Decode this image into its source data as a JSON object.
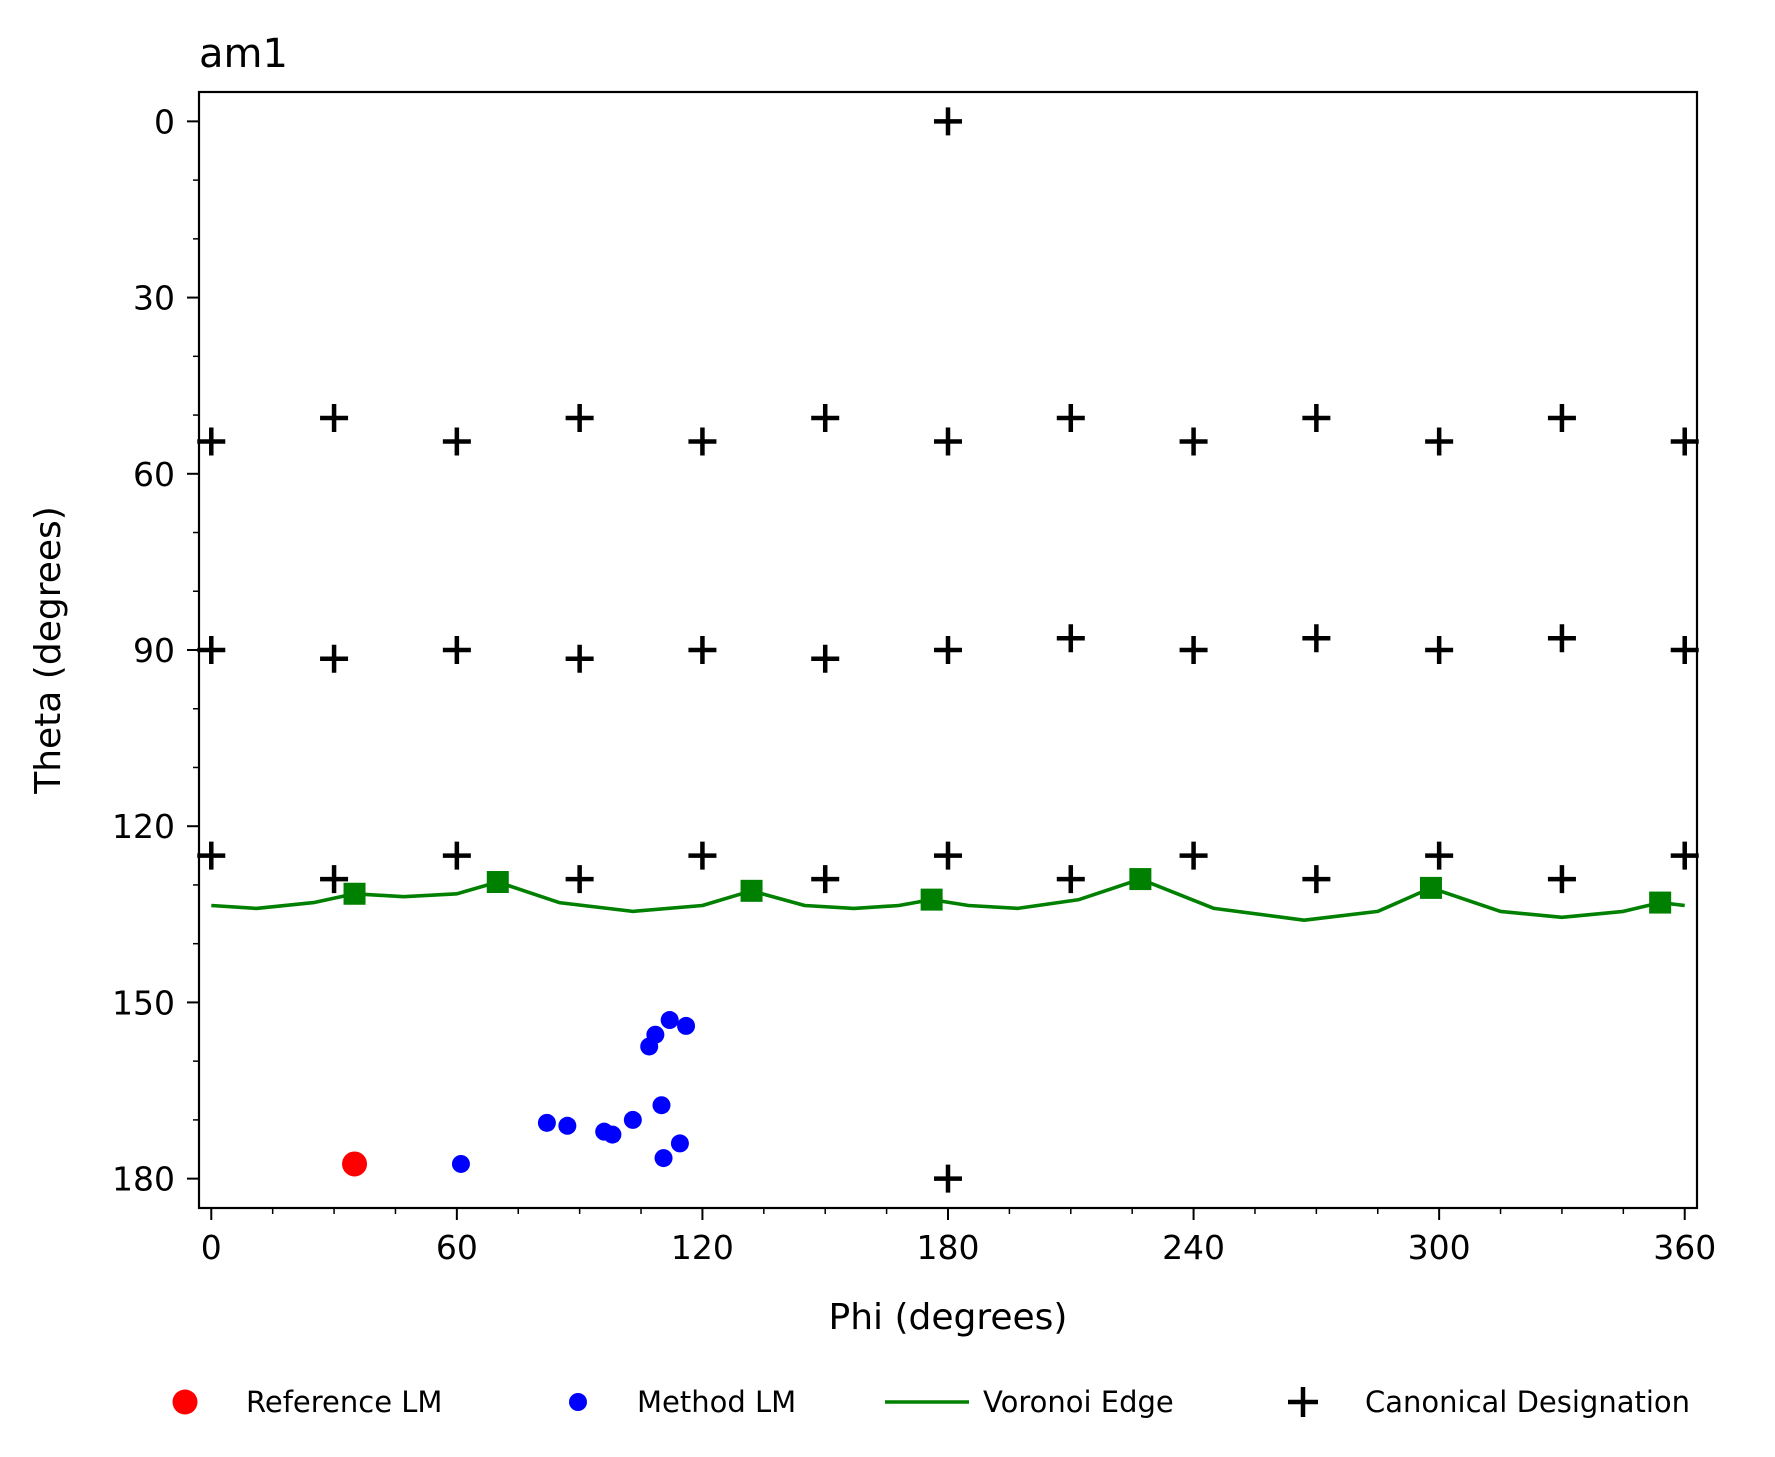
{
  "chart_data": {
    "type": "scatter",
    "title": "am1",
    "xlabel": "Phi (degrees)",
    "ylabel": "Theta (degrees)",
    "xlim": [
      -3,
      363
    ],
    "ylim": [
      185,
      -5
    ],
    "y_inverted": true,
    "xticks": [
      0,
      60,
      120,
      180,
      240,
      300,
      360
    ],
    "yticks": [
      0,
      30,
      60,
      90,
      120,
      150,
      180
    ],
    "grid": false,
    "legend_position": "bottom, outside plot",
    "series": [
      {
        "name": "Reference LM",
        "kind": "scatter",
        "marker": "circle",
        "color": "#ff0000",
        "points": [
          {
            "x": 35,
            "y": 177.5
          }
        ]
      },
      {
        "name": "Method LM",
        "kind": "scatter",
        "marker": "circle",
        "color": "#0000ff",
        "points": [
          {
            "x": 61,
            "y": 177.5
          },
          {
            "x": 82,
            "y": 170.5
          },
          {
            "x": 87,
            "y": 171
          },
          {
            "x": 96,
            "y": 172
          },
          {
            "x": 98,
            "y": 172.5
          },
          {
            "x": 103,
            "y": 170
          },
          {
            "x": 107,
            "y": 157.5
          },
          {
            "x": 108.5,
            "y": 155.5
          },
          {
            "x": 110,
            "y": 167.5
          },
          {
            "x": 110.5,
            "y": 176.5
          },
          {
            "x": 112,
            "y": 153
          },
          {
            "x": 114.5,
            "y": 174
          },
          {
            "x": 116,
            "y": 154
          }
        ]
      },
      {
        "name": "Voronoi Edge",
        "kind": "line",
        "color": "#008000",
        "points": [
          {
            "x": 0,
            "y": 133.5
          },
          {
            "x": 11,
            "y": 134
          },
          {
            "x": 25,
            "y": 133
          },
          {
            "x": 35,
            "y": 131.5
          },
          {
            "x": 47,
            "y": 132
          },
          {
            "x": 60,
            "y": 131.5
          },
          {
            "x": 70,
            "y": 129.5
          },
          {
            "x": 85,
            "y": 133
          },
          {
            "x": 103,
            "y": 134.5
          },
          {
            "x": 120,
            "y": 133.5
          },
          {
            "x": 132,
            "y": 131
          },
          {
            "x": 145,
            "y": 133.5
          },
          {
            "x": 157,
            "y": 134
          },
          {
            "x": 168,
            "y": 133.5
          },
          {
            "x": 176,
            "y": 132.5
          },
          {
            "x": 185,
            "y": 133.5
          },
          {
            "x": 197,
            "y": 134
          },
          {
            "x": 212,
            "y": 132.5
          },
          {
            "x": 227,
            "y": 129
          },
          {
            "x": 245,
            "y": 134
          },
          {
            "x": 267,
            "y": 136
          },
          {
            "x": 285,
            "y": 134.5
          },
          {
            "x": 298,
            "y": 130.5
          },
          {
            "x": 315,
            "y": 134.5
          },
          {
            "x": 330,
            "y": 135.5
          },
          {
            "x": 345,
            "y": 134.5
          },
          {
            "x": 354,
            "y": 133
          },
          {
            "x": 360,
            "y": 133.5
          }
        ],
        "vertices": [
          {
            "x": 35,
            "y": 131.5
          },
          {
            "x": 70,
            "y": 129.5
          },
          {
            "x": 132,
            "y": 131
          },
          {
            "x": 176,
            "y": 132.5
          },
          {
            "x": 227,
            "y": 129
          },
          {
            "x": 298,
            "y": 130.5
          },
          {
            "x": 354,
            "y": 133
          }
        ]
      },
      {
        "name": "Canonical Designation",
        "kind": "scatter",
        "marker": "plus",
        "color": "#000000",
        "points": [
          {
            "x": 180,
            "y": 0
          },
          {
            "x": 180,
            "y": 180
          },
          {
            "x": 0,
            "y": 54.5
          },
          {
            "x": 30,
            "y": 50.5
          },
          {
            "x": 60,
            "y": 54.5
          },
          {
            "x": 90,
            "y": 50.5
          },
          {
            "x": 120,
            "y": 54.5
          },
          {
            "x": 150,
            "y": 50.5
          },
          {
            "x": 180,
            "y": 54.5
          },
          {
            "x": 210,
            "y": 50.5
          },
          {
            "x": 240,
            "y": 54.5
          },
          {
            "x": 270,
            "y": 50.5
          },
          {
            "x": 300,
            "y": 54.5
          },
          {
            "x": 330,
            "y": 50.5
          },
          {
            "x": 360,
            "y": 54.5
          },
          {
            "x": 0,
            "y": 90
          },
          {
            "x": 30,
            "y": 91.5
          },
          {
            "x": 60,
            "y": 90
          },
          {
            "x": 90,
            "y": 91.5
          },
          {
            "x": 120,
            "y": 90
          },
          {
            "x": 150,
            "y": 91.5
          },
          {
            "x": 180,
            "y": 90
          },
          {
            "x": 210,
            "y": 88
          },
          {
            "x": 240,
            "y": 90
          },
          {
            "x": 270,
            "y": 88
          },
          {
            "x": 300,
            "y": 90
          },
          {
            "x": 330,
            "y": 88
          },
          {
            "x": 360,
            "y": 90
          },
          {
            "x": 0,
            "y": 125
          },
          {
            "x": 30,
            "y": 129
          },
          {
            "x": 60,
            "y": 125
          },
          {
            "x": 90,
            "y": 129
          },
          {
            "x": 120,
            "y": 125
          },
          {
            "x": 150,
            "y": 129
          },
          {
            "x": 180,
            "y": 125
          },
          {
            "x": 210,
            "y": 129
          },
          {
            "x": 240,
            "y": 125
          },
          {
            "x": 270,
            "y": 129
          },
          {
            "x": 300,
            "y": 125
          },
          {
            "x": 330,
            "y": 129
          },
          {
            "x": 360,
            "y": 125
          }
        ]
      }
    ]
  }
}
